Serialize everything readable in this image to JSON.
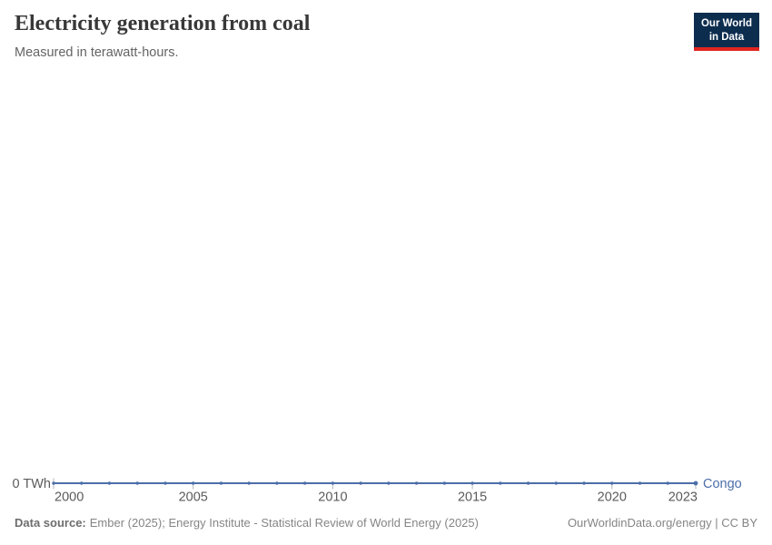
{
  "header": {
    "title": "Electricity generation from coal",
    "subtitle": "Measured in terawatt-hours."
  },
  "logo": {
    "line1": "Our World",
    "line2": "in Data"
  },
  "chart_data": {
    "type": "line",
    "title": "Electricity generation from coal",
    "subtitle": "Measured in terawatt-hours.",
    "unit": "TWh",
    "x_range": [
      2000,
      2023
    ],
    "x": [
      2000,
      2001,
      2002,
      2003,
      2004,
      2005,
      2006,
      2007,
      2008,
      2009,
      2010,
      2011,
      2012,
      2013,
      2014,
      2015,
      2016,
      2017,
      2018,
      2019,
      2020,
      2021,
      2022,
      2023
    ],
    "series": [
      {
        "name": "Congo",
        "values": [
          0,
          0,
          0,
          0,
          0,
          0,
          0,
          0,
          0,
          0,
          0,
          0,
          0,
          0,
          0,
          0,
          0,
          0,
          0,
          0,
          0,
          0,
          0,
          0
        ]
      }
    ],
    "x_ticks": [
      2000,
      2005,
      2010,
      2015,
      2020,
      2023
    ],
    "y_axis": {
      "ticks": [
        0
      ],
      "label": "0 TWh"
    },
    "grid": false,
    "legend_position": "end-of-line"
  },
  "footer": {
    "data_source_label": "Data source:",
    "data_source_text": "Ember (2025); Energy Institute - Statistical Review of World Energy (2025)",
    "credit": "OurWorldinData.org/energy | CC BY"
  },
  "colors": {
    "line": "#4c6ea9",
    "entity_label": "#4c6ea9",
    "title": "#383838",
    "subtitle": "#646464",
    "tick_label": "#5b5b5b",
    "footer_text": "#858585",
    "logo_background": "#0d2d4f",
    "logo_accent": "#e0251f"
  }
}
